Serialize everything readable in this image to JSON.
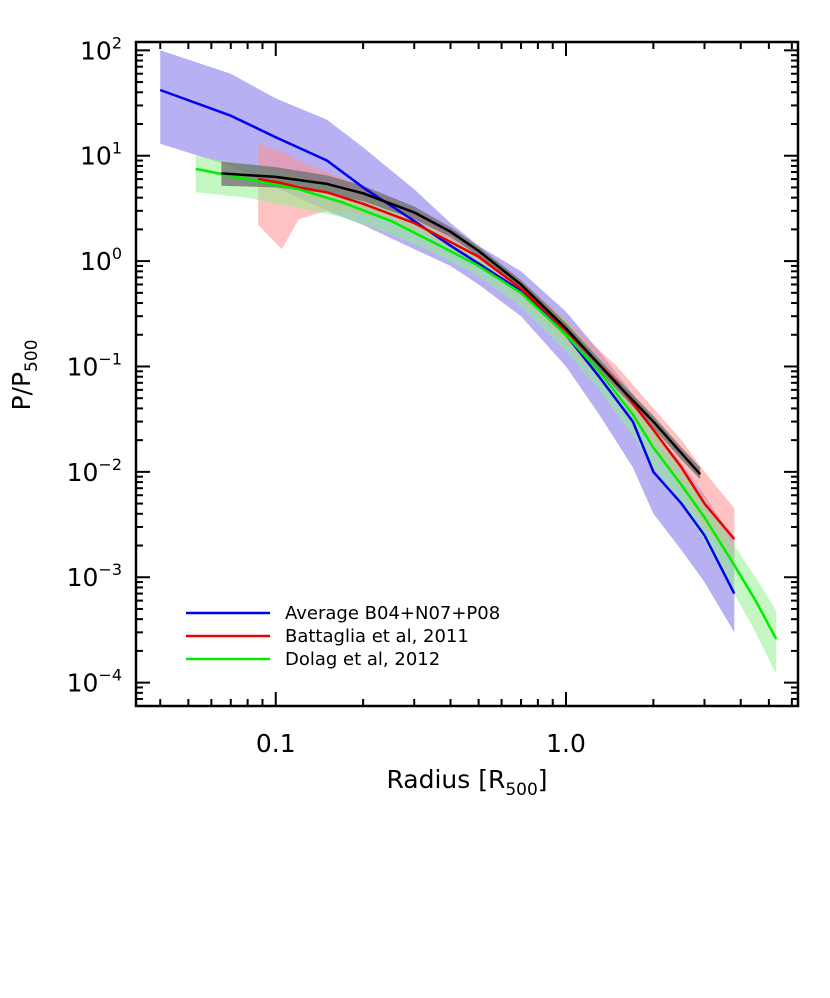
{
  "chart_data": {
    "type": "line",
    "xlabel": "Radius [R",
    "xlabel_sub": "500",
    "xlabel_end": "]",
    "ylabel": "P/P",
    "ylabel_sub": "500",
    "x_scale": "log",
    "y_scale": "log",
    "xlim": [
      0.033,
      6.3
    ],
    "ylim": [
      6e-05,
      120
    ],
    "x_ticks": [
      {
        "value": 0.1,
        "label": "0.1"
      },
      {
        "value": 1.0,
        "label": "1.0"
      }
    ],
    "y_ticks": [
      {
        "value": 100,
        "base": "10",
        "exp": "2"
      },
      {
        "value": 10,
        "base": "10",
        "exp": "1"
      },
      {
        "value": 1,
        "base": "10",
        "exp": "0"
      },
      {
        "value": 0.1,
        "base": "10",
        "exp": "−1"
      },
      {
        "value": 0.01,
        "base": "10",
        "exp": "−2"
      },
      {
        "value": 0.001,
        "base": "10",
        "exp": "−3"
      },
      {
        "value": 0.0001,
        "base": "10",
        "exp": "−4"
      }
    ],
    "grid": false,
    "legend_position": "bottom-left",
    "series": [
      {
        "name": "Average B04+N07+P08",
        "color": "#0000ee",
        "band_color": "#7b6fe8",
        "x": [
          0.04,
          0.07,
          0.1,
          0.15,
          0.2,
          0.3,
          0.4,
          0.5,
          0.7,
          1.0,
          1.3,
          1.7,
          2.0,
          2.5,
          3.0,
          3.8
        ],
        "y": [
          42,
          24,
          15,
          9,
          5,
          2.4,
          1.4,
          0.95,
          0.52,
          0.2,
          0.08,
          0.03,
          0.01,
          0.005,
          0.0025,
          0.0007
        ],
        "y_low": [
          13,
          8,
          5,
          3,
          2.2,
          1.3,
          0.9,
          0.6,
          0.3,
          0.1,
          0.035,
          0.011,
          0.004,
          0.0018,
          0.0009,
          0.0003
        ],
        "y_high": [
          100,
          60,
          35,
          22,
          12,
          4.8,
          2.3,
          1.4,
          0.8,
          0.33,
          0.14,
          0.055,
          0.025,
          0.012,
          0.006,
          0.0022
        ]
      },
      {
        "name": "Battaglia et al, 2011",
        "color": "#ee0000",
        "band_color": "#ff8f8f",
        "x": [
          0.087,
          0.105,
          0.12,
          0.15,
          0.2,
          0.3,
          0.5,
          0.7,
          1.0,
          1.5,
          2.0,
          2.5,
          3.0,
          3.8
        ],
        "y": [
          6,
          5.5,
          5,
          4.5,
          3.5,
          2.3,
          1.1,
          0.55,
          0.22,
          0.07,
          0.025,
          0.011,
          0.005,
          0.0023
        ],
        "y_low": [
          2.2,
          1.3,
          2.5,
          3,
          2.8,
          2,
          0.95,
          0.45,
          0.17,
          0.05,
          0.017,
          0.007,
          0.003,
          0.0014
        ],
        "y_high": [
          13,
          11,
          9,
          7,
          5,
          3,
          1.3,
          0.65,
          0.28,
          0.1,
          0.04,
          0.02,
          0.01,
          0.0045
        ]
      },
      {
        "name": "Dolag et al, 2012",
        "color": "#00ee00",
        "band_color": "#93f08f",
        "x": [
          0.053,
          0.08,
          0.12,
          0.17,
          0.25,
          0.35,
          0.5,
          0.7,
          1.0,
          1.3,
          1.7,
          2.0,
          2.5,
          3.0,
          3.8,
          4.5,
          5.3
        ],
        "y": [
          7.5,
          6,
          4.8,
          3.6,
          2.4,
          1.5,
          0.9,
          0.5,
          0.2,
          0.09,
          0.035,
          0.017,
          0.0075,
          0.0037,
          0.0013,
          0.0006,
          0.00026
        ],
        "y_low": [
          4.5,
          4,
          3.2,
          2.6,
          1.8,
          1.2,
          0.72,
          0.37,
          0.14,
          0.06,
          0.022,
          0.011,
          0.0048,
          0.0022,
          0.0007,
          0.0003,
          0.00012
        ],
        "y_high": [
          10,
          8.2,
          6.5,
          4.8,
          3.2,
          2,
          1.15,
          0.62,
          0.27,
          0.12,
          0.05,
          0.024,
          0.011,
          0.0055,
          0.002,
          0.001,
          0.00048
        ]
      },
      {
        "name": "",
        "color": "#000000",
        "band_color": "#6e6e6e",
        "x": [
          0.065,
          0.1,
          0.15,
          0.2,
          0.3,
          0.4,
          0.5,
          0.7,
          1.0,
          1.5,
          2.0,
          2.5,
          2.9
        ],
        "y": [
          6.8,
          6.3,
          5.4,
          4.4,
          2.9,
          1.9,
          1.25,
          0.6,
          0.23,
          0.068,
          0.03,
          0.015,
          0.0095
        ],
        "y_low": [
          5.2,
          5,
          4.4,
          3.7,
          2.5,
          1.7,
          1.12,
          0.54,
          0.2,
          0.06,
          0.026,
          0.013,
          0.0085
        ],
        "y_high": [
          8.8,
          7.8,
          6.5,
          5.2,
          3.3,
          2.1,
          1.38,
          0.66,
          0.26,
          0.077,
          0.034,
          0.017,
          0.011
        ]
      }
    ],
    "legend": [
      {
        "label": "Average B04+N07+P08",
        "color": "#0000ee"
      },
      {
        "label": "Battaglia et al, 2011",
        "color": "#ee0000"
      },
      {
        "label": "Dolag et al, 2012",
        "color": "#00ee00"
      }
    ]
  }
}
